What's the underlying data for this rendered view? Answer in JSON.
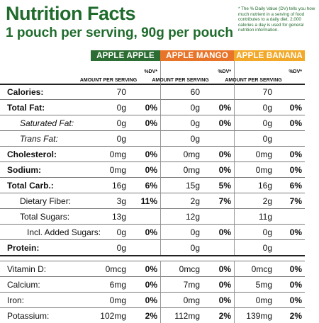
{
  "title": "Nutrition Facts",
  "subtitle": "1 pouch per serving, 90g per pouch",
  "footnote": "* The % Daily Value (DV) tells you how much nutrient in a serving of food contributes to a daily diet. 2,000 calories a day is used for general nutrition information.",
  "colors": {
    "accent_green": "#2b6d32",
    "orange": "#e8742a",
    "yellow": "#f2a929"
  },
  "columns": [
    {
      "name": "APPLE APPLE",
      "amount_label": "AMOUNT PER SERVING",
      "dv_label": "%DV*"
    },
    {
      "name": "APPLE MANGO",
      "amount_label": "AMOUNT PER SERVING",
      "dv_label": "%DV*"
    },
    {
      "name": "APPLE BANANA",
      "amount_label": "AMOUNT PER SERVING",
      "dv_label": "%DV*"
    }
  ],
  "rows": [
    {
      "label": "Calories:",
      "style": "b",
      "v": [
        "70",
        "",
        "60",
        "",
        "70",
        ""
      ]
    },
    {
      "label": "Total Fat:",
      "style": "b",
      "v": [
        "0g",
        "0%",
        "0g",
        "0%",
        "0g",
        "0%"
      ]
    },
    {
      "label": "Saturated Fat:",
      "style": "it",
      "v": [
        "0g",
        "0%",
        "0g",
        "0%",
        "0g",
        "0%"
      ]
    },
    {
      "label": "Trans Fat:",
      "style": "it",
      "v": [
        "0g",
        "",
        "0g",
        "",
        "0g",
        ""
      ]
    },
    {
      "label": "Cholesterol:",
      "style": "b",
      "v": [
        "0mg",
        "0%",
        "0mg",
        "0%",
        "0mg",
        "0%"
      ]
    },
    {
      "label": "Sodium:",
      "style": "b",
      "v": [
        "0mg",
        "0%",
        "0mg",
        "0%",
        "0mg",
        "0%"
      ]
    },
    {
      "label": "Total Carb.:",
      "style": "b",
      "v": [
        "16g",
        "6%",
        "15g",
        "5%",
        "16g",
        "6%"
      ]
    },
    {
      "label": "Dietary Fiber:",
      "style": "ind",
      "v": [
        "3g",
        "11%",
        "2g",
        "7%",
        "2g",
        "7%"
      ]
    },
    {
      "label": "Total Sugars:",
      "style": "ind",
      "v": [
        "13g",
        "",
        "12g",
        "",
        "11g",
        ""
      ]
    },
    {
      "label": "Incl. Added Sugars:",
      "style": "ind2",
      "v": [
        "0g",
        "0%",
        "0g",
        "0%",
        "0g",
        "0%"
      ]
    },
    {
      "label": "Protein:",
      "style": "b",
      "v": [
        "0g",
        "",
        "0g",
        "",
        "0g",
        ""
      ]
    }
  ],
  "vitamins": [
    {
      "label": "Vitamin D:",
      "v": [
        "0mcg",
        "0%",
        "0mcg",
        "0%",
        "0mcg",
        "0%"
      ]
    },
    {
      "label": "Calcium:",
      "v": [
        "6mg",
        "0%",
        "7mg",
        "0%",
        "5mg",
        "0%"
      ]
    },
    {
      "label": "Iron:",
      "v": [
        "0mg",
        "0%",
        "0mg",
        "0%",
        "0mg",
        "0%"
      ]
    },
    {
      "label": "Potassium:",
      "v": [
        "102mg",
        "2%",
        "112mg",
        "2%",
        "139mg",
        "2%"
      ]
    }
  ]
}
